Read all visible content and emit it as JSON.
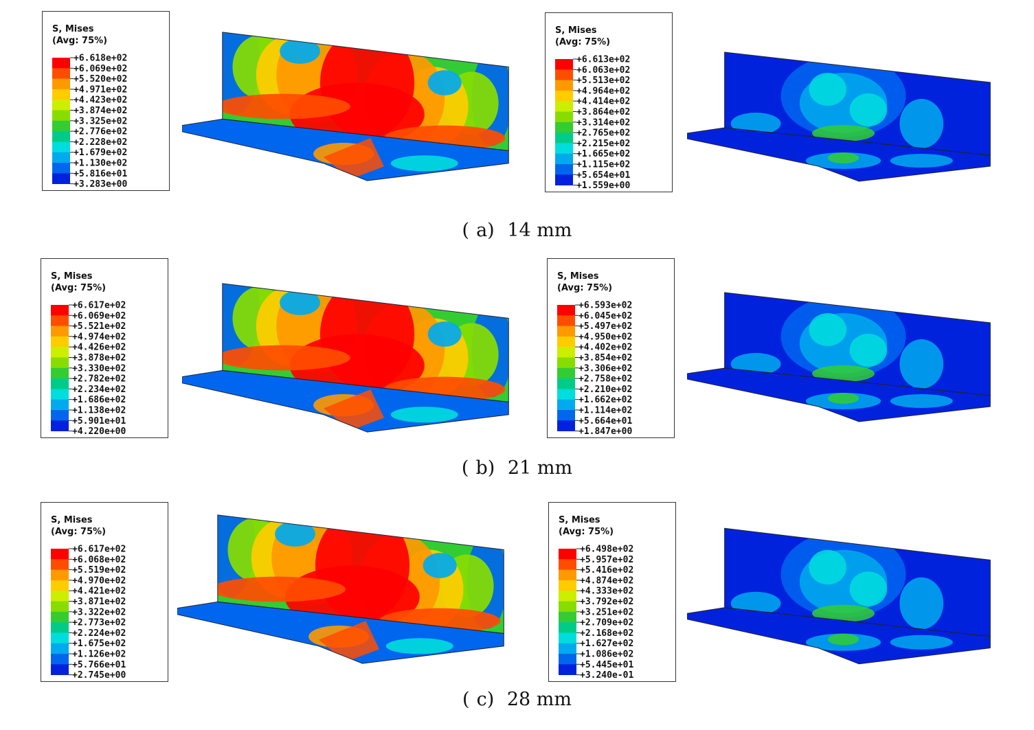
{
  "panels": [
    {
      "caption": {
        "label": "a",
        "size": "14 mm"
      },
      "legends": [
        {
          "title1": "S, Mises",
          "title2": "(Avg: 75%)",
          "values": [
            "+6.618e+02",
            "+6.069e+02",
            "+5.520e+02",
            "+4.971e+02",
            "+4.423e+02",
            "+3.874e+02",
            "+3.325e+02",
            "+2.776e+02",
            "+2.228e+02",
            "+1.679e+02",
            "+1.130e+02",
            "+5.816e+01",
            "+3.283e+00"
          ]
        },
        {
          "title1": "S, Mises",
          "title2": "(Avg: 75%)",
          "values": [
            "+6.613e+02",
            "+6.063e+02",
            "+5.513e+02",
            "+4.964e+02",
            "+4.414e+02",
            "+3.864e+02",
            "+3.314e+02",
            "+2.765e+02",
            "+2.215e+02",
            "+1.665e+02",
            "+1.115e+02",
            "+5.654e+01",
            "+1.559e+00"
          ]
        }
      ]
    },
    {
      "caption": {
        "label": "b",
        "size": "21 mm"
      },
      "legends": [
        {
          "title1": "S, Mises",
          "title2": "(Avg: 75%)",
          "values": [
            "+6.617e+02",
            "+6.069e+02",
            "+5.521e+02",
            "+4.974e+02",
            "+4.426e+02",
            "+3.878e+02",
            "+3.330e+02",
            "+2.782e+02",
            "+2.234e+02",
            "+1.686e+02",
            "+1.138e+02",
            "+5.901e+01",
            "+4.220e+00"
          ]
        },
        {
          "title1": "S, Mises",
          "title2": "(Avg: 75%)",
          "values": [
            "+6.593e+02",
            "+6.045e+02",
            "+5.497e+02",
            "+4.950e+02",
            "+4.402e+02",
            "+3.854e+02",
            "+3.306e+02",
            "+2.758e+02",
            "+2.210e+02",
            "+1.662e+02",
            "+1.114e+02",
            "+5.664e+01",
            "+1.847e+00"
          ]
        }
      ]
    },
    {
      "caption": {
        "label": "c",
        "size": "28 mm"
      },
      "legends": [
        {
          "title1": "S, Mises",
          "title2": "(Avg: 75%)",
          "values": [
            "+6.617e+02",
            "+6.068e+02",
            "+5.519e+02",
            "+4.970e+02",
            "+4.421e+02",
            "+3.871e+02",
            "+3.322e+02",
            "+2.773e+02",
            "+2.224e+02",
            "+1.675e+02",
            "+1.126e+02",
            "+5.766e+01",
            "+2.745e+00"
          ]
        },
        {
          "title1": "S, Mises",
          "title2": "(Avg: 75%)",
          "values": [
            "+6.498e+02",
            "+5.957e+02",
            "+5.416e+02",
            "+4.874e+02",
            "+4.333e+02",
            "+3.792e+02",
            "+3.251e+02",
            "+2.709e+02",
            "+2.168e+02",
            "+1.627e+02",
            "+1.086e+02",
            "+5.445e+01",
            "+3.240e-01"
          ]
        }
      ]
    }
  ],
  "colormap": [
    "#ff0000",
    "#ff4d00",
    "#ff9900",
    "#ffcc00",
    "#ccee00",
    "#88dd00",
    "#33cc33",
    "#00cc88",
    "#00dddd",
    "#00aaee",
    "#0066ee",
    "#0022dd"
  ]
}
